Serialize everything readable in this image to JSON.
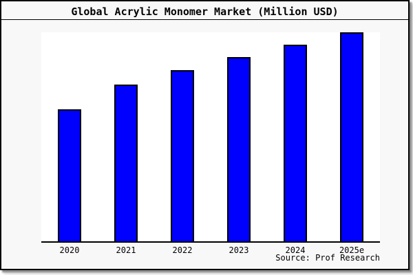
{
  "title": "Global Acrylic Monomer Market (Million USD)",
  "source": "Source: Prof Research",
  "colors": {
    "bar_fill": "#0000fe",
    "bar_border": "#000000",
    "figure_bg": "#f8f8f8",
    "plot_bg": "#ffffff",
    "frame_border": "#000000",
    "shadow": "#8c8c8c"
  },
  "chart_data": {
    "type": "bar",
    "title": "Global Acrylic Monomer Market (Million USD)",
    "categories": [
      "2020",
      "2021",
      "2022",
      "2023",
      "2024",
      "2025e"
    ],
    "values": [
      63,
      75,
      82,
      88,
      94,
      100
    ],
    "value_unit": "relative index, 2025e = 100 (no y-axis tick labels shown in figure)",
    "xlabel": "",
    "ylabel": "",
    "ylim": [
      0,
      100
    ],
    "grid": false,
    "legend": false,
    "y_axis_visible": false,
    "annotation": "Source: Prof Research"
  }
}
